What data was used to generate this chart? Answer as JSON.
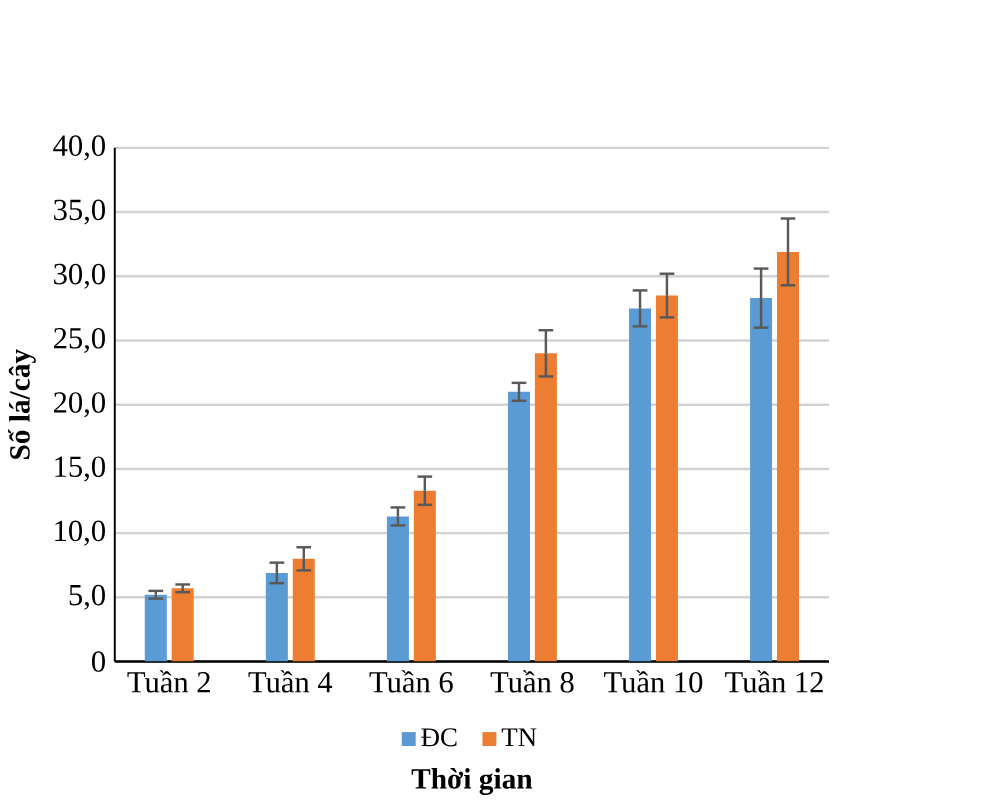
{
  "chart_data": {
    "type": "bar",
    "xlabel": "Thời gian",
    "ylabel": "Số lá/cây",
    "categories": [
      "Tuần 2",
      "Tuần 4",
      "Tuần 6",
      "Tuần 8",
      "Tuần 10",
      "Tuần 12"
    ],
    "series": [
      {
        "name": "ĐC",
        "color": "#5b9bd5",
        "values": [
          5.2,
          6.9,
          11.3,
          21.0,
          27.5,
          28.3
        ],
        "errors": [
          0.3,
          0.8,
          0.7,
          0.7,
          1.4,
          2.3
        ]
      },
      {
        "name": "TN",
        "color": "#ed7d31",
        "values": [
          5.7,
          8.0,
          13.3,
          24.0,
          28.5,
          31.9
        ],
        "errors": [
          0.3,
          0.9,
          1.1,
          1.8,
          1.7,
          2.6
        ]
      }
    ],
    "ylim": [
      0,
      40
    ],
    "yticks": [
      0,
      {
        "value": 5,
        "label": "5,0"
      },
      {
        "value": 10,
        "label": "10,0"
      },
      {
        "value": 15,
        "label": "15,0"
      },
      {
        "value": 20,
        "label": "20,0"
      },
      {
        "value": 25,
        "label": "25,0"
      },
      {
        "value": 30,
        "label": "30,0"
      },
      {
        "value": 35,
        "label": "35,0"
      },
      {
        "value": 40,
        "label": "40,0"
      }
    ],
    "grid": "y",
    "legend": "bottom"
  }
}
